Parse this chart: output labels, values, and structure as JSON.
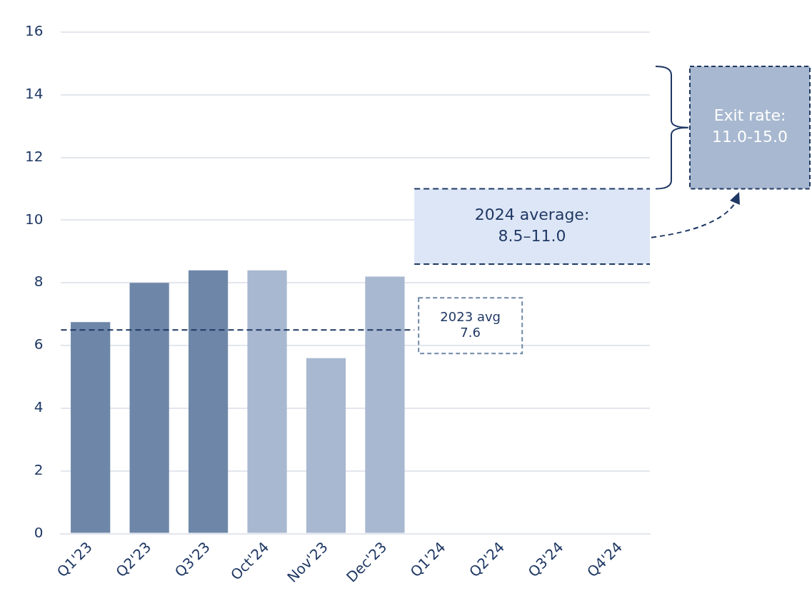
{
  "chart_data": {
    "type": "bar",
    "categories": [
      "Q1'23",
      "Q2'23",
      "Q3'23",
      "Oct'24",
      "Nov'23",
      "Dec'23",
      "Q1'24",
      "Q2'24",
      "Q3'24",
      "Q4'24"
    ],
    "values": [
      6.75,
      8.0,
      8.4,
      8.4,
      5.6,
      8.2,
      null,
      null,
      null,
      null
    ],
    "colors": [
      "#6e87a8",
      "#6e87a8",
      "#6e87a8",
      "#a8b8d0",
      "#a8b8d0",
      "#a8b8d0",
      "#a8b8d0",
      "#a8b8d0",
      "#a8b8d0",
      "#a8b8d0"
    ],
    "ylim": [
      0,
      16
    ],
    "yticks": [
      0,
      2,
      4,
      6,
      8,
      10,
      12,
      14,
      16
    ],
    "grid": "y",
    "ref_lines": [
      {
        "axis": "y",
        "value": 6.5,
        "label": "2023 avg\n7.6",
        "color": "#1f3864",
        "line_style": "dashed"
      },
      {
        "axis": "y",
        "value": 11.0,
        "color": "#1f3864",
        "line_style": "dashed"
      },
      {
        "axis": "y",
        "value": 8.6,
        "color": "#1f3864",
        "line_style": "dashed"
      }
    ],
    "bands": [
      {
        "axis": "y",
        "from": 8.6,
        "to": 11.0,
        "label": "2024 average:\n8.5–11.0",
        "color": "#dde6f6"
      }
    ],
    "annotations": [
      "Exit rate:\n11.0-15.0"
    ]
  }
}
